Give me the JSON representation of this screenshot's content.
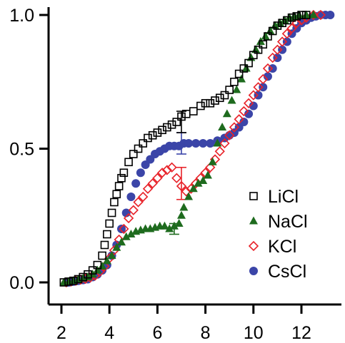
{
  "chart_data": {
    "type": "scatter",
    "title": "",
    "xlabel": "",
    "ylabel": "",
    "xlim": [
      1.7,
      13.6
    ],
    "ylim": [
      -0.07,
      1.04
    ],
    "xticks": [
      2,
      4,
      6,
      8,
      10,
      12
    ],
    "yticks": [
      0.0,
      0.5,
      1.0
    ],
    "ytick_labels": [
      "0.0",
      "0.5",
      "1.0"
    ],
    "grid": false,
    "legend_position": "bottom-right",
    "series": [
      {
        "name": "LiCl",
        "marker": "open-square",
        "color": "#000000",
        "points": [
          [
            2.1,
            0.0
          ],
          [
            2.3,
            0.003
          ],
          [
            2.5,
            0.006
          ],
          [
            2.7,
            0.012
          ],
          [
            2.9,
            0.02
          ],
          [
            3.1,
            0.03
          ],
          [
            3.3,
            0.045
          ],
          [
            3.5,
            0.065
          ],
          [
            3.7,
            0.1
          ],
          [
            3.8,
            0.14
          ],
          [
            3.9,
            0.18
          ],
          [
            4.0,
            0.22
          ],
          [
            4.1,
            0.26
          ],
          [
            4.2,
            0.3
          ],
          [
            4.3,
            0.33
          ],
          [
            4.4,
            0.36
          ],
          [
            4.5,
            0.39
          ],
          [
            4.6,
            0.41
          ],
          [
            4.8,
            0.45
          ],
          [
            5.0,
            0.48
          ],
          [
            5.2,
            0.5
          ],
          [
            5.4,
            0.52
          ],
          [
            5.6,
            0.54
          ],
          [
            5.8,
            0.55
          ],
          [
            6.0,
            0.56
          ],
          [
            6.2,
            0.57
          ],
          [
            6.4,
            0.58
          ],
          [
            6.6,
            0.59
          ],
          [
            6.8,
            0.6
          ],
          [
            7.0,
            0.62
          ],
          [
            7.2,
            0.63
          ],
          [
            7.5,
            0.64
          ],
          [
            7.8,
            0.66
          ],
          [
            8.0,
            0.67
          ],
          [
            8.2,
            0.67
          ],
          [
            8.4,
            0.68
          ],
          [
            8.6,
            0.69
          ],
          [
            8.8,
            0.7
          ],
          [
            9.0,
            0.72
          ],
          [
            9.2,
            0.75
          ],
          [
            9.4,
            0.78
          ],
          [
            9.6,
            0.8
          ],
          [
            9.8,
            0.82
          ],
          [
            10.0,
            0.85
          ],
          [
            10.2,
            0.87
          ],
          [
            10.4,
            0.89
          ],
          [
            10.6,
            0.92
          ],
          [
            10.8,
            0.94
          ],
          [
            11.0,
            0.96
          ],
          [
            11.2,
            0.97
          ],
          [
            11.4,
            0.98
          ],
          [
            11.6,
            0.99
          ],
          [
            11.8,
            0.995
          ],
          [
            12.0,
            1.0
          ],
          [
            12.2,
            1.0
          ]
        ],
        "error_bars": [
          {
            "x": 7.0,
            "y": 0.6,
            "err": 0.04
          }
        ]
      },
      {
        "name": "NaCl",
        "marker": "filled-triangle",
        "color": "#1e6b1e",
        "points": [
          [
            2.1,
            0.0
          ],
          [
            2.3,
            0.003
          ],
          [
            2.5,
            0.006
          ],
          [
            2.7,
            0.01
          ],
          [
            2.9,
            0.015
          ],
          [
            3.1,
            0.02
          ],
          [
            3.3,
            0.03
          ],
          [
            3.5,
            0.045
          ],
          [
            3.7,
            0.06
          ],
          [
            3.9,
            0.08
          ],
          [
            4.1,
            0.1
          ],
          [
            4.3,
            0.13
          ],
          [
            4.5,
            0.15
          ],
          [
            4.7,
            0.17
          ],
          [
            4.9,
            0.18
          ],
          [
            5.1,
            0.19
          ],
          [
            5.3,
            0.195
          ],
          [
            5.5,
            0.2
          ],
          [
            5.7,
            0.2
          ],
          [
            5.9,
            0.205
          ],
          [
            6.1,
            0.21
          ],
          [
            6.3,
            0.21
          ],
          [
            6.5,
            0.2
          ],
          [
            6.7,
            0.21
          ],
          [
            6.9,
            0.22
          ],
          [
            7.0,
            0.25
          ],
          [
            7.1,
            0.28
          ],
          [
            7.3,
            0.32
          ],
          [
            7.5,
            0.35
          ],
          [
            7.7,
            0.37
          ],
          [
            7.9,
            0.38
          ],
          [
            8.1,
            0.4
          ],
          [
            8.3,
            0.45
          ],
          [
            8.5,
            0.52
          ],
          [
            8.7,
            0.58
          ],
          [
            8.9,
            0.63
          ],
          [
            9.1,
            0.68
          ],
          [
            9.3,
            0.72
          ],
          [
            9.5,
            0.76
          ],
          [
            9.7,
            0.8
          ],
          [
            9.9,
            0.84
          ],
          [
            10.1,
            0.87
          ],
          [
            10.3,
            0.9
          ],
          [
            10.5,
            0.92
          ],
          [
            10.7,
            0.94
          ],
          [
            10.9,
            0.96
          ],
          [
            11.1,
            0.97
          ],
          [
            11.3,
            0.98
          ],
          [
            11.5,
            0.99
          ],
          [
            11.7,
            0.995
          ],
          [
            11.9,
            1.0
          ],
          [
            12.2,
            1.0
          ],
          [
            12.5,
            1.0
          ]
        ],
        "error_bars": [
          {
            "x": 6.7,
            "y": 0.2,
            "err": 0.02
          }
        ]
      },
      {
        "name": "KCl",
        "marker": "open-diamond",
        "color": "#e8232a",
        "points": [
          [
            2.2,
            0.0
          ],
          [
            2.4,
            0.003
          ],
          [
            2.6,
            0.006
          ],
          [
            2.8,
            0.01
          ],
          [
            3.0,
            0.013
          ],
          [
            3.2,
            0.018
          ],
          [
            3.4,
            0.025
          ],
          [
            3.6,
            0.04
          ],
          [
            3.8,
            0.06
          ],
          [
            4.0,
            0.09
          ],
          [
            4.2,
            0.12
          ],
          [
            4.4,
            0.16
          ],
          [
            4.6,
            0.2
          ],
          [
            4.8,
            0.24
          ],
          [
            5.0,
            0.27
          ],
          [
            5.2,
            0.3
          ],
          [
            5.4,
            0.32
          ],
          [
            5.6,
            0.35
          ],
          [
            5.8,
            0.37
          ],
          [
            6.0,
            0.39
          ],
          [
            6.2,
            0.41
          ],
          [
            6.4,
            0.42
          ],
          [
            6.6,
            0.43
          ],
          [
            6.8,
            0.39
          ],
          [
            7.0,
            0.36
          ],
          [
            7.2,
            0.34
          ],
          [
            7.4,
            0.35
          ],
          [
            7.6,
            0.37
          ],
          [
            7.8,
            0.39
          ],
          [
            8.0,
            0.41
          ],
          [
            8.2,
            0.43
          ],
          [
            8.4,
            0.46
          ],
          [
            8.6,
            0.49
          ],
          [
            8.8,
            0.52
          ],
          [
            9.0,
            0.55
          ],
          [
            9.2,
            0.58
          ],
          [
            9.4,
            0.61
          ],
          [
            9.6,
            0.64
          ],
          [
            9.8,
            0.67
          ],
          [
            10.0,
            0.7
          ],
          [
            10.2,
            0.73
          ],
          [
            10.4,
            0.76
          ],
          [
            10.6,
            0.8
          ],
          [
            10.8,
            0.84
          ],
          [
            11.0,
            0.87
          ],
          [
            11.2,
            0.9
          ],
          [
            11.4,
            0.93
          ],
          [
            11.6,
            0.95
          ],
          [
            11.8,
            0.97
          ],
          [
            12.0,
            0.98
          ],
          [
            12.2,
            0.99
          ],
          [
            12.5,
            1.0
          ],
          [
            12.8,
            1.0
          ]
        ],
        "error_bars": [
          {
            "x": 7.0,
            "y": 0.37,
            "err": 0.06
          }
        ]
      },
      {
        "name": "CsCl",
        "marker": "filled-circle",
        "color": "#3b45a8",
        "points": [
          [
            2.3,
            0.0
          ],
          [
            2.5,
            0.003
          ],
          [
            2.7,
            0.006
          ],
          [
            2.9,
            0.009
          ],
          [
            3.1,
            0.012
          ],
          [
            3.3,
            0.02
          ],
          [
            3.5,
            0.03
          ],
          [
            3.7,
            0.045
          ],
          [
            3.9,
            0.065
          ],
          [
            4.1,
            0.1
          ],
          [
            4.3,
            0.14
          ],
          [
            4.5,
            0.2
          ],
          [
            4.7,
            0.26
          ],
          [
            4.9,
            0.32
          ],
          [
            5.1,
            0.37
          ],
          [
            5.3,
            0.41
          ],
          [
            5.5,
            0.44
          ],
          [
            5.7,
            0.46
          ],
          [
            5.9,
            0.48
          ],
          [
            6.1,
            0.49
          ],
          [
            6.3,
            0.5
          ],
          [
            6.5,
            0.51
          ],
          [
            6.7,
            0.51
          ],
          [
            6.9,
            0.51
          ],
          [
            7.1,
            0.52
          ],
          [
            7.3,
            0.52
          ],
          [
            7.6,
            0.52
          ],
          [
            7.9,
            0.52
          ],
          [
            8.2,
            0.52
          ],
          [
            8.5,
            0.53
          ],
          [
            8.8,
            0.54
          ],
          [
            9.0,
            0.55
          ],
          [
            9.2,
            0.56
          ],
          [
            9.4,
            0.58
          ],
          [
            9.6,
            0.6
          ],
          [
            9.8,
            0.63
          ],
          [
            10.0,
            0.66
          ],
          [
            10.2,
            0.7
          ],
          [
            10.4,
            0.73
          ],
          [
            10.6,
            0.77
          ],
          [
            10.8,
            0.8
          ],
          [
            11.0,
            0.84
          ],
          [
            11.2,
            0.87
          ],
          [
            11.4,
            0.9
          ],
          [
            11.6,
            0.93
          ],
          [
            11.8,
            0.95
          ],
          [
            12.0,
            0.97
          ],
          [
            12.2,
            0.98
          ],
          [
            12.4,
            0.99
          ],
          [
            12.6,
            0.995
          ],
          [
            12.8,
            1.0
          ],
          [
            13.0,
            1.0
          ],
          [
            13.2,
            1.0
          ]
        ],
        "error_bars": [
          {
            "x": 7.0,
            "y": 0.52,
            "err": 0.04
          }
        ]
      }
    ]
  }
}
